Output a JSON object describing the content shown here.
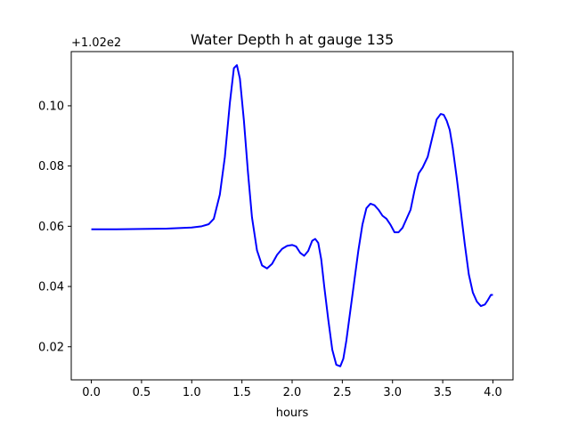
{
  "chart_data": {
    "type": "line",
    "title": "Water Depth h at gauge 135",
    "xlabel": "hours",
    "ylabel": "",
    "offset_label": "+1.02e2",
    "xlim": [
      -0.2,
      4.2
    ],
    "ylim": [
      0.009,
      0.118
    ],
    "xticks": [
      0.0,
      0.5,
      1.0,
      1.5,
      2.0,
      2.5,
      3.0,
      3.5,
      4.0
    ],
    "xtick_labels": [
      "0.0",
      "0.5",
      "1.0",
      "1.5",
      "2.0",
      "2.5",
      "3.0",
      "3.5",
      "4.0"
    ],
    "yticks": [
      0.02,
      0.04,
      0.06,
      0.08,
      0.1
    ],
    "ytick_labels": [
      "0.02",
      "0.04",
      "0.06",
      "0.08",
      "0.10"
    ],
    "grid": false,
    "series": [
      {
        "color": "#0000ff",
        "x": [
          0.0,
          0.25,
          0.5,
          0.75,
          1.0,
          1.1,
          1.17,
          1.22,
          1.28,
          1.33,
          1.38,
          1.42,
          1.45,
          1.48,
          1.52,
          1.56,
          1.6,
          1.65,
          1.7,
          1.75,
          1.8,
          1.85,
          1.9,
          1.95,
          2.0,
          2.04,
          2.08,
          2.12,
          2.16,
          2.2,
          2.23,
          2.26,
          2.29,
          2.32,
          2.36,
          2.4,
          2.44,
          2.48,
          2.51,
          2.54,
          2.58,
          2.62,
          2.66,
          2.7,
          2.74,
          2.78,
          2.82,
          2.86,
          2.9,
          2.94,
          2.98,
          3.02,
          3.06,
          3.1,
          3.14,
          3.18,
          3.22,
          3.26,
          3.3,
          3.35,
          3.4,
          3.44,
          3.48,
          3.51,
          3.54,
          3.57,
          3.6,
          3.64,
          3.68,
          3.72,
          3.76,
          3.8,
          3.84,
          3.88,
          3.92,
          3.95,
          3.98,
          4.0
        ],
        "values": [
          0.059,
          0.059,
          0.0591,
          0.0592,
          0.0596,
          0.06,
          0.0607,
          0.0625,
          0.0705,
          0.083,
          0.101,
          0.1125,
          0.1135,
          0.109,
          0.095,
          0.078,
          0.063,
          0.052,
          0.047,
          0.046,
          0.0475,
          0.0505,
          0.0525,
          0.0535,
          0.0538,
          0.0533,
          0.0512,
          0.0502,
          0.0518,
          0.0552,
          0.0558,
          0.0545,
          0.049,
          0.04,
          0.029,
          0.019,
          0.014,
          0.0135,
          0.016,
          0.022,
          0.032,
          0.042,
          0.052,
          0.0605,
          0.066,
          0.0675,
          0.067,
          0.0655,
          0.0635,
          0.0625,
          0.0605,
          0.058,
          0.058,
          0.0595,
          0.0625,
          0.0655,
          0.072,
          0.0775,
          0.0795,
          0.083,
          0.09,
          0.0955,
          0.0973,
          0.097,
          0.095,
          0.092,
          0.086,
          0.076,
          0.065,
          0.054,
          0.044,
          0.038,
          0.035,
          0.0335,
          0.034,
          0.0355,
          0.0372,
          0.0372
        ]
      }
    ]
  }
}
